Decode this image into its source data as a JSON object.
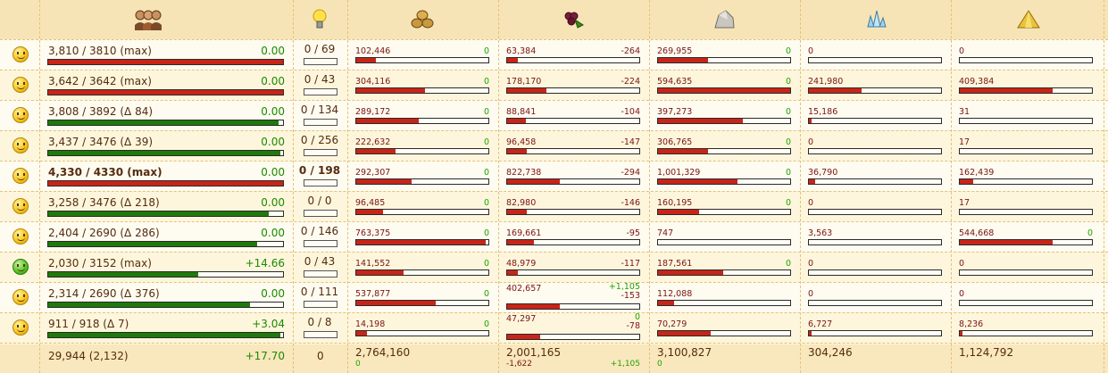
{
  "header": {
    "icons": [
      "citizens-icon",
      "research-bulb-icon",
      "wood-icon",
      "wine-icon",
      "marble-icon",
      "crystal-icon",
      "sulfur-icon"
    ]
  },
  "colors": {
    "full": "#c82418",
    "growing": "#1e7a0a",
    "resource_fill": "#c82418",
    "positive": "#20a300",
    "negative": "#7a1414"
  },
  "rows": [
    {
      "mood": "neutral",
      "population": "3,810 / 3810 (max)",
      "growth": "0.00",
      "pop_ratio": 1.0,
      "pop_status": "full",
      "actions": "0 / 69",
      "resources": [
        {
          "amount": "102,446",
          "delta": "0",
          "fill": 0.15
        },
        {
          "amount": "63,384",
          "delta": "-264",
          "fill": 0.08
        },
        {
          "amount": "269,955",
          "delta": "0",
          "fill": 0.38
        },
        {
          "amount": "0",
          "fill": 0.0
        },
        {
          "amount": "0",
          "fill": 0.0
        }
      ]
    },
    {
      "mood": "neutral",
      "population": "3,642 / 3642 (max)",
      "growth": "0.00",
      "pop_ratio": 1.0,
      "pop_status": "full",
      "actions": "0 / 43",
      "resources": [
        {
          "amount": "304,116",
          "delta": "0",
          "fill": 0.52
        },
        {
          "amount": "178,170",
          "delta": "-224",
          "fill": 0.3
        },
        {
          "amount": "594,635",
          "delta": "0",
          "fill": 1.0
        },
        {
          "amount": "241,980",
          "fill": 0.4
        },
        {
          "amount": "409,384",
          "fill": 0.7
        }
      ]
    },
    {
      "mood": "neutral",
      "population": "3,808 / 3892 (Δ 84)",
      "growth": "0.00",
      "pop_ratio": 0.98,
      "pop_status": "growing",
      "actions": "0 / 134",
      "resources": [
        {
          "amount": "289,172",
          "delta": "0",
          "fill": 0.47
        },
        {
          "amount": "88,841",
          "delta": "-104",
          "fill": 0.14
        },
        {
          "amount": "397,273",
          "delta": "0",
          "fill": 0.64
        },
        {
          "amount": "15,186",
          "fill": 0.02
        },
        {
          "amount": "31",
          "fill": 0.0
        }
      ]
    },
    {
      "mood": "neutral",
      "population": "3,437 / 3476 (Δ 39)",
      "growth": "0.00",
      "pop_ratio": 0.99,
      "pop_status": "growing",
      "actions": "0 / 256",
      "resources": [
        {
          "amount": "222,632",
          "delta": "0",
          "fill": 0.3
        },
        {
          "amount": "96,458",
          "delta": "-147",
          "fill": 0.15
        },
        {
          "amount": "306,765",
          "delta": "0",
          "fill": 0.38
        },
        {
          "amount": "0",
          "fill": 0.0
        },
        {
          "amount": "17",
          "fill": 0.0
        }
      ]
    },
    {
      "mood": "neutral",
      "population": "4,330 / 4330 (max)",
      "growth": "0.00",
      "pop_ratio": 1.0,
      "pop_status": "full",
      "actions": "0 / 198",
      "highlight": true,
      "resources": [
        {
          "amount": "292,307",
          "delta": "0",
          "fill": 0.42
        },
        {
          "amount": "822,738",
          "delta": "-294",
          "fill": 0.4
        },
        {
          "amount": "1,001,329",
          "delta": "0",
          "fill": 0.6
        },
        {
          "amount": "36,790",
          "fill": 0.05
        },
        {
          "amount": "162,439",
          "fill": 0.1
        }
      ]
    },
    {
      "mood": "neutral",
      "population": "3,258 / 3476 (Δ 218)",
      "growth": "0.00",
      "pop_ratio": 0.94,
      "pop_status": "growing",
      "actions": "0 / 0",
      "resources": [
        {
          "amount": "96,485",
          "delta": "0",
          "fill": 0.2
        },
        {
          "amount": "82,980",
          "delta": "-146",
          "fill": 0.15
        },
        {
          "amount": "160,195",
          "delta": "0",
          "fill": 0.31
        },
        {
          "amount": "0",
          "fill": 0.0
        },
        {
          "amount": "17",
          "fill": 0.0
        }
      ]
    },
    {
      "mood": "neutral",
      "population": "2,404 / 2690 (Δ 286)",
      "growth": "0.00",
      "pop_ratio": 0.89,
      "pop_status": "growing",
      "actions": "0 / 146",
      "resources": [
        {
          "amount": "763,375",
          "delta": "0",
          "fill": 0.98
        },
        {
          "amount": "169,661",
          "delta": "-95",
          "fill": 0.2
        },
        {
          "amount": "747",
          "fill": 0.0
        },
        {
          "amount": "3,563",
          "fill": 0.0
        },
        {
          "amount": "544,668",
          "delta": "0",
          "fill": 0.7
        }
      ]
    },
    {
      "mood": "happy",
      "population": "2,030 / 3152 (max)",
      "growth": "+14.66",
      "pop_ratio": 0.64,
      "pop_status": "growing",
      "actions": "0 / 43",
      "resources": [
        {
          "amount": "141,552",
          "delta": "0",
          "fill": 0.36
        },
        {
          "amount": "48,979",
          "delta": "-117",
          "fill": 0.08
        },
        {
          "amount": "187,561",
          "delta": "0",
          "fill": 0.49
        },
        {
          "amount": "0",
          "fill": 0.0
        },
        {
          "amount": "0",
          "fill": 0.0
        }
      ]
    },
    {
      "mood": "neutral",
      "population": "2,314 / 2690 (Δ 376)",
      "growth": "0.00",
      "pop_ratio": 0.86,
      "pop_status": "growing",
      "actions": "0 / 111",
      "resources": [
        {
          "amount": "537,877",
          "delta": "0",
          "fill": 0.6
        },
        {
          "amount": "402,657",
          "delta_pos": "+1,105",
          "delta": "-153",
          "fill": 0.4
        },
        {
          "amount": "112,088",
          "fill": 0.12
        },
        {
          "amount": "0",
          "fill": 0.0
        },
        {
          "amount": "0",
          "fill": 0.0
        }
      ]
    },
    {
      "mood": "neutral",
      "population": "911 / 918 (Δ 7)",
      "growth": "+3.04",
      "pop_ratio": 0.99,
      "pop_status": "growing",
      "actions": "0 / 8",
      "resources": [
        {
          "amount": "14,198",
          "delta": "0",
          "fill": 0.08
        },
        {
          "amount": "47,297",
          "delta_pos": "0",
          "delta": "-78",
          "fill": 0.25
        },
        {
          "amount": "70,279",
          "fill": 0.4
        },
        {
          "amount": "6,727",
          "fill": 0.02
        },
        {
          "amount": "8,236",
          "fill": 0.02
        }
      ]
    }
  ],
  "totals": {
    "population": "29,944 (2,132)",
    "growth": "+17.70",
    "actions": "0",
    "resources": [
      {
        "amount": "2,764,160",
        "sub": "0"
      },
      {
        "amount": "2,001,165",
        "sub": "-1,622",
        "sub_pos": "+1,105"
      },
      {
        "amount": "3,100,827",
        "sub": "0"
      },
      {
        "amount": "304,246"
      },
      {
        "amount": "1,124,792"
      }
    ]
  }
}
